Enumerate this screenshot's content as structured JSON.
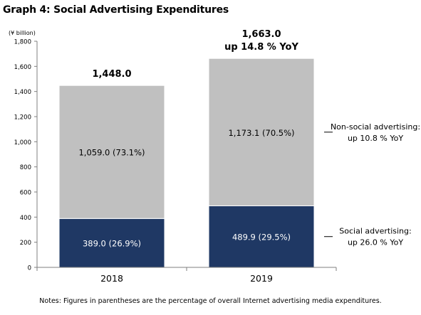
{
  "chart_data": {
    "type": "bar",
    "stacked": true,
    "title": "Graph 4: Social Advertising Expenditures",
    "unit_label": "(¥ billion)",
    "categories": [
      "2018",
      "2019"
    ],
    "ylim": [
      0,
      1800
    ],
    "y_ticks": [
      0,
      200,
      400,
      600,
      800,
      1000,
      1200,
      1400,
      1600,
      1800
    ],
    "y_tick_labels": [
      "0",
      "200",
      "400",
      "600",
      "800",
      "1,000",
      "1,200",
      "1,400",
      "1,600",
      "1,800"
    ],
    "grid": false,
    "series": [
      {
        "values": [
          389.0,
          489.9
        ],
        "data_labels": [
          "389.0 (26.9%)",
          "489.9 (29.5%)"
        ],
        "color": "#1f3864",
        "label_color": "#ffffff",
        "side_label": [
          "Social advertising:",
          "up 26.0 % YoY"
        ]
      },
      {
        "values": [
          1059.0,
          1173.1
        ],
        "data_labels": [
          "1,059.0 (73.1%)",
          "1,173.1 (70.5%)"
        ],
        "color": "#c0c0c0",
        "label_color": "#000000",
        "side_label": [
          "Non-social advertising:",
          "up 10.8 % YoY"
        ]
      }
    ],
    "totals": [
      {
        "lines": [
          "1,448.0"
        ]
      },
      {
        "lines": [
          "1,663.0",
          "up 14.8 % YoY"
        ]
      }
    ],
    "note": "Notes: Figures in parentheses are the percentage of overall Internet advertising media expenditures."
  }
}
